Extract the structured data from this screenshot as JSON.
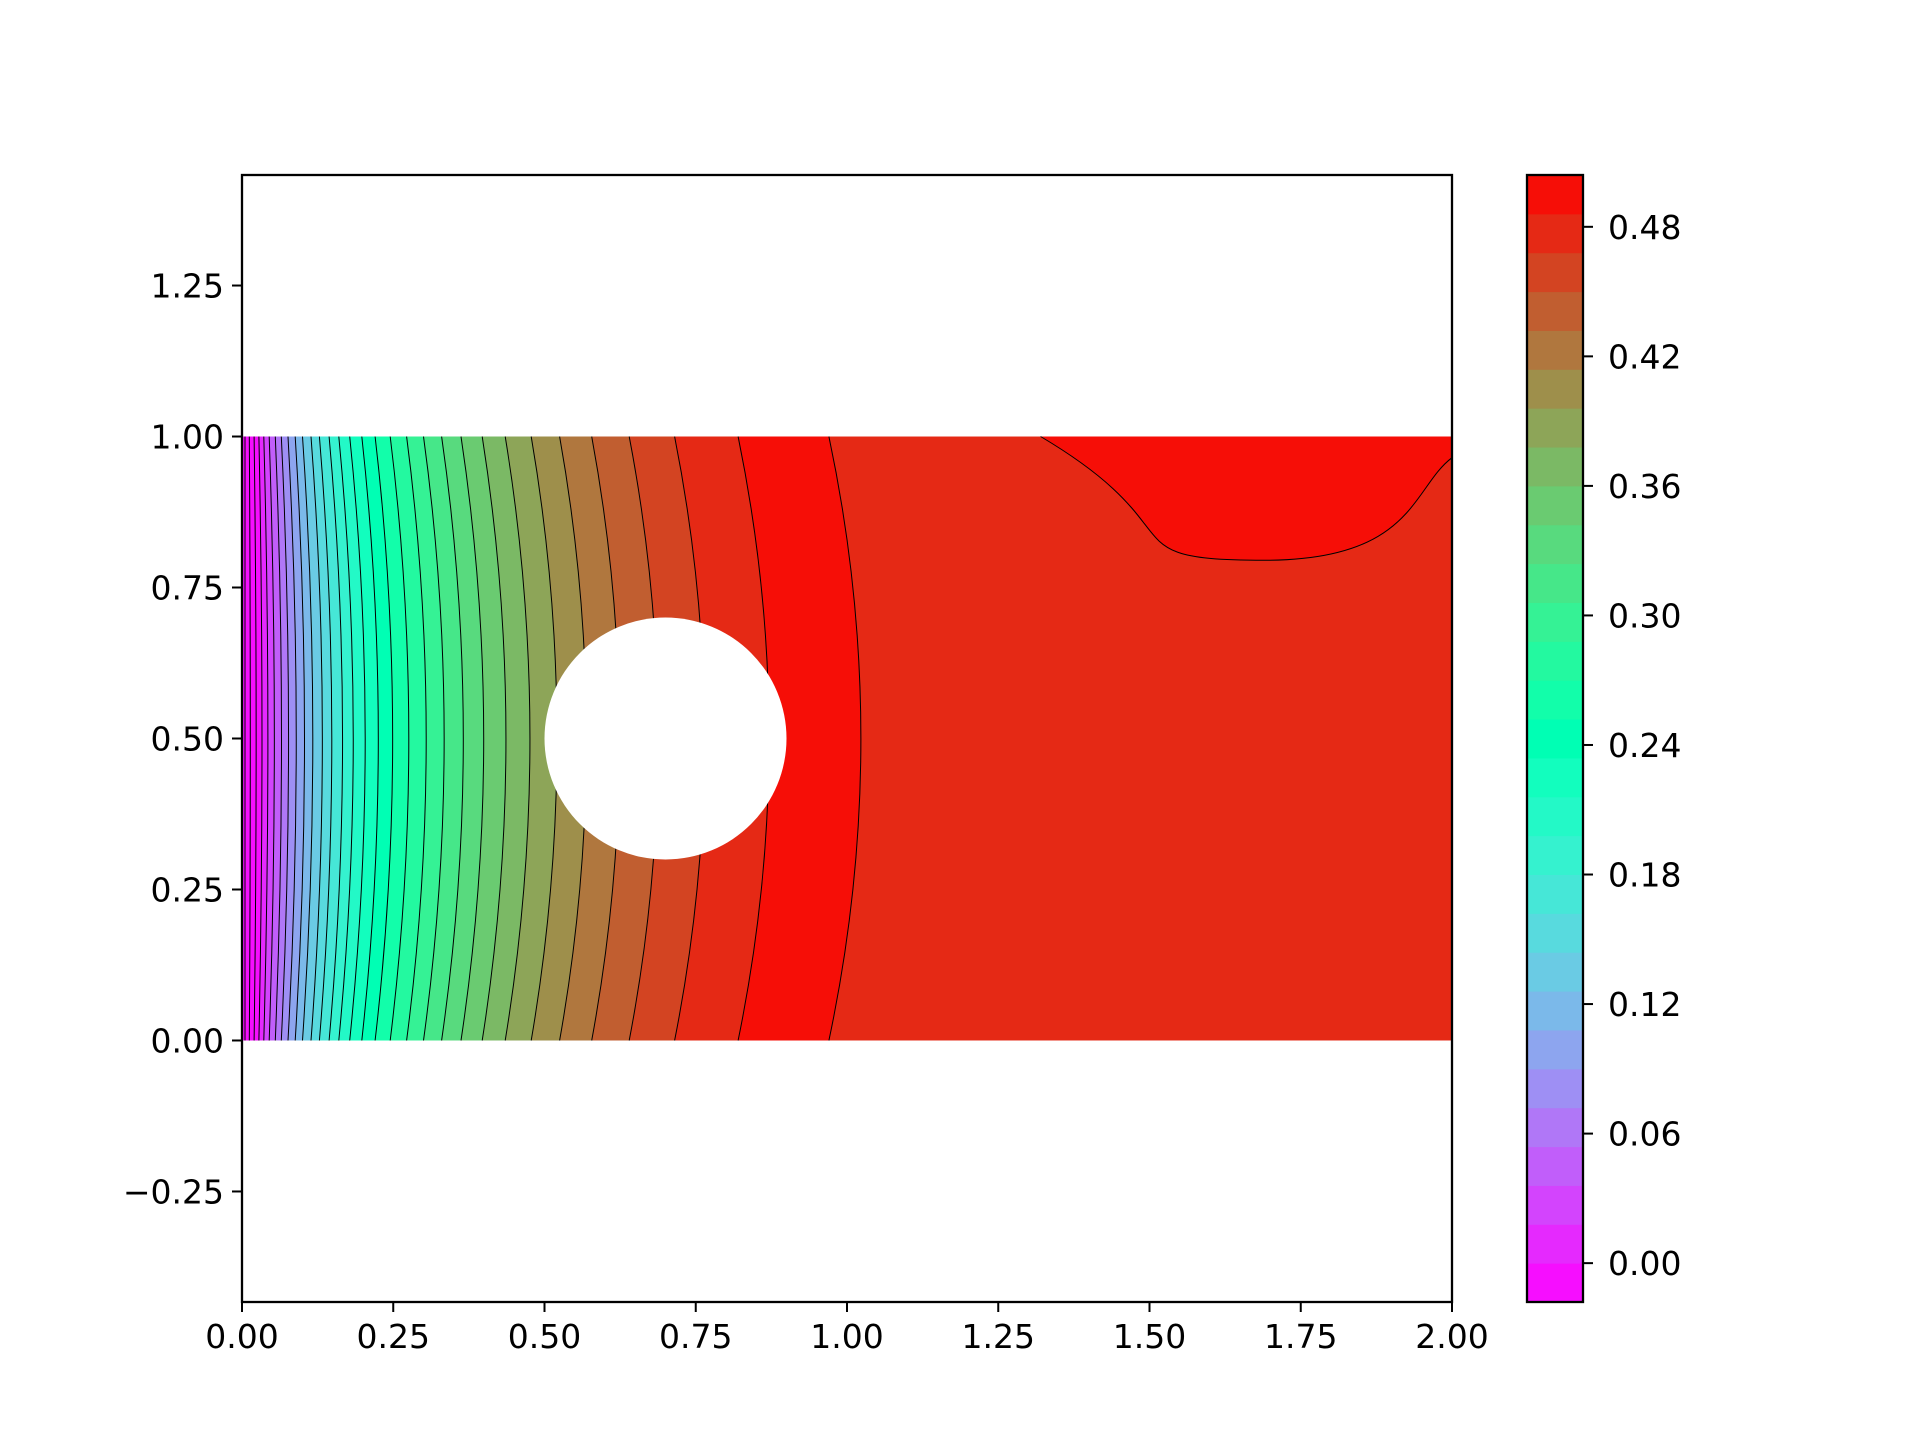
{
  "chart_data": {
    "type": "heatmap",
    "subtype": "filled-contour",
    "colormap": "rainbow",
    "title": "",
    "xlabel": "",
    "ylabel": "",
    "xlim": [
      0.0,
      2.0
    ],
    "ylim": [
      -0.433,
      1.433
    ],
    "x_ticks": [
      "0.00",
      "0.25",
      "0.50",
      "0.75",
      "1.00",
      "1.25",
      "1.50",
      "1.75",
      "2.00"
    ],
    "y_ticks": [
      "−0.25",
      "0.00",
      "0.25",
      "0.50",
      "0.75",
      "1.00",
      "1.25"
    ],
    "domain": {
      "x": [
        0.0,
        2.0
      ],
      "y": [
        0.0,
        1.0
      ]
    },
    "obstacle": {
      "shape": "circle",
      "center": [
        0.7,
        0.5
      ],
      "radius": 0.2
    },
    "value_range": [
      -0.018,
      0.504
    ],
    "colorbar": {
      "levels": {
        "min": -0.018,
        "max": 0.504,
        "step": 0.018
      },
      "tick_labels": [
        "0.00",
        "0.06",
        "0.12",
        "0.18",
        "0.24",
        "0.30",
        "0.36",
        "0.42",
        "0.48"
      ]
    },
    "contour_positions_at_y0": [
      0.005,
      0.012,
      0.02,
      0.028,
      0.036,
      0.045,
      0.055,
      0.065,
      0.076,
      0.088,
      0.1,
      0.114,
      0.128,
      0.144,
      0.16,
      0.178,
      0.198,
      0.22,
      0.245,
      0.272,
      0.3,
      0.33,
      0.362,
      0.397,
      0.435,
      0.478,
      0.525,
      0.578,
      0.64,
      0.715,
      0.82,
      0.97
    ],
    "contour_positions_at_y1": [
      0.005,
      0.012,
      0.02,
      0.028,
      0.036,
      0.045,
      0.055,
      0.065,
      0.076,
      0.088,
      0.1,
      0.114,
      0.128,
      0.144,
      0.16,
      0.178,
      0.198,
      0.22,
      0.245,
      0.272,
      0.3,
      0.33,
      0.362,
      0.397,
      0.435,
      0.478,
      0.525,
      0.578,
      0.64,
      0.715,
      0.82,
      0.97
    ],
    "max_region": {
      "boundary_start": [
        1.32,
        1.0
      ],
      "boundary_min": [
        1.69,
        0.795
      ],
      "boundary_end": [
        2.0,
        0.965
      ]
    }
  }
}
